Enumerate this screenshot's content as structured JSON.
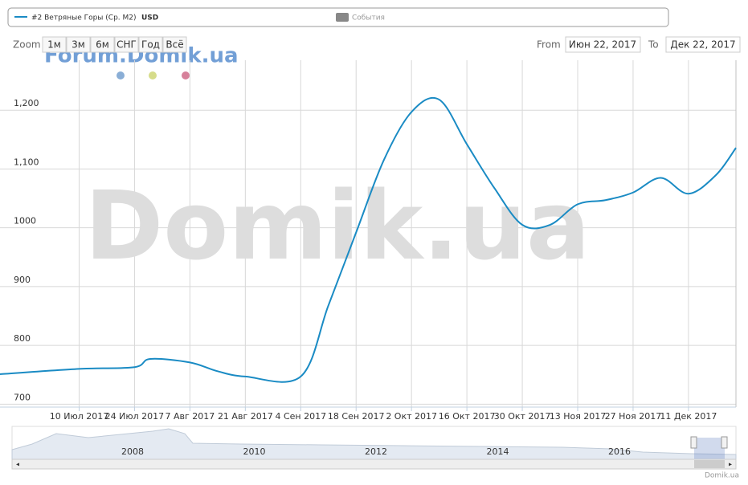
{
  "chart_data": {
    "type": "line",
    "legend": {
      "series_label": "#2 Ветряные Горы (Ср. M2)",
      "currency": "USD",
      "events_label": "События"
    },
    "range_selector": {
      "zoom_label": "Zoom",
      "buttons": [
        "1м",
        "3м",
        "6м",
        "СНГ",
        "Год",
        "Всё"
      ],
      "from_label": "From",
      "from_value": "Июн 22, 2017",
      "to_label": "To",
      "to_value": "Дек 22, 2017"
    },
    "watermarks": {
      "forum": "Forum.Domik.ua",
      "big": "Domik.ua",
      "credit": "Domik.ua"
    },
    "navigator_labels": [
      "2008",
      "2010",
      "2012",
      "2014",
      "2016"
    ],
    "x": [
      "2017-06-20",
      "2017-07-10",
      "2017-07-24",
      "2017-07-28",
      "2017-08-07",
      "2017-08-14",
      "2017-08-21",
      "2017-09-04",
      "2017-09-11",
      "2017-09-18",
      "2017-09-25",
      "2017-10-02",
      "2017-10-09",
      "2017-10-16",
      "2017-10-23",
      "2017-10-30",
      "2017-11-06",
      "2017-11-13",
      "2017-11-20",
      "2017-11-27",
      "2017-12-04",
      "2017-12-11",
      "2017-12-18",
      "2017-12-23"
    ],
    "series": [
      {
        "name": "#2 Ветряные Горы (Ср. M2)",
        "color": "#1a8bc4",
        "values": [
          751,
          760,
          763,
          777,
          771,
          756,
          747,
          747,
          868,
          992,
          1115,
          1197,
          1218,
          1142,
          1067,
          1005,
          1005,
          1040,
          1047,
          1060,
          1085,
          1058,
          1090,
          1136
        ]
      }
    ],
    "xlim": [
      "2017-06-20",
      "2017-12-23"
    ],
    "ylim": [
      695,
      1285
    ],
    "xticks": [
      {
        "value": "2017-07-10",
        "label": "10 Июл 2017"
      },
      {
        "value": "2017-07-24",
        "label": "24 Июл 2017"
      },
      {
        "value": "2017-08-07",
        "label": "7 Авг 2017"
      },
      {
        "value": "2017-08-21",
        "label": "21 Авг 2017"
      },
      {
        "value": "2017-09-04",
        "label": "4 Сен 2017"
      },
      {
        "value": "2017-09-18",
        "label": "18 Сен 2017"
      },
      {
        "value": "2017-10-02",
        "label": "2 Окт 2017"
      },
      {
        "value": "2017-10-16",
        "label": "16 Окт 2017"
      },
      {
        "value": "2017-10-30",
        "label": "30 Окт 2017"
      },
      {
        "value": "2017-11-13",
        "label": "13 Ноя 2017"
      },
      {
        "value": "2017-11-27",
        "label": "27 Ноя 2017"
      },
      {
        "value": "2017-12-11",
        "label": "11 Дек 2017"
      }
    ],
    "yticks": [
      700,
      800,
      900,
      1000,
      {
        "value": 1100,
        "label": "1,100"
      },
      {
        "value": 1200,
        "label": "1,200"
      }
    ],
    "grid": true
  }
}
